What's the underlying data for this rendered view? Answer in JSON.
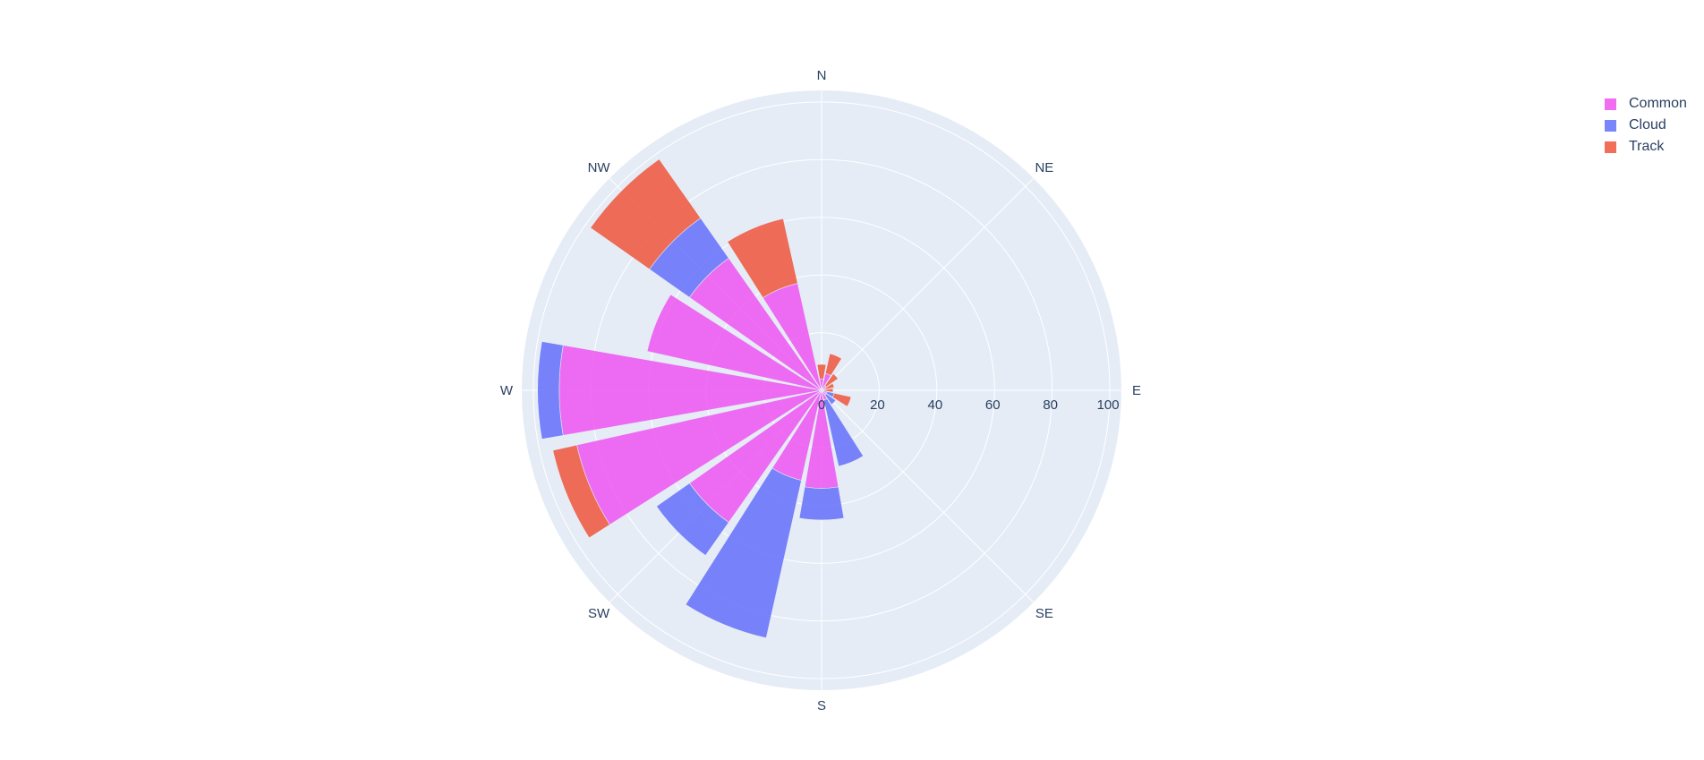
{
  "chart_data": {
    "type": "barpolar",
    "angular_ticks": [
      "N",
      "NE",
      "E",
      "SE",
      "S",
      "SW",
      "W",
      "NW"
    ],
    "radial_ticks": [
      0,
      20,
      40,
      60,
      80,
      100
    ],
    "radial_range": [
      0,
      104
    ],
    "directions": [
      "N",
      "NNE",
      "NE",
      "ENE",
      "E",
      "ESE",
      "SE",
      "SSE",
      "S",
      "SSW",
      "SW",
      "WSW",
      "W",
      "WNW",
      "NW",
      "NNW"
    ],
    "series": [
      {
        "name": "Common",
        "color": "#ef55f1",
        "values": [
          4,
          6,
          2,
          1.5,
          1,
          2,
          2,
          3.5,
          34,
          32,
          56,
          87,
          91,
          62,
          56,
          38
        ]
      },
      {
        "name": "Cloud",
        "color": "#636efa",
        "values": [
          0,
          0,
          0,
          0,
          0,
          2.5,
          4,
          23.5,
          11,
          56,
          14,
          0,
          7.5,
          0,
          17,
          0
        ]
      },
      {
        "name": "Track",
        "color": "#ef553b",
        "values": [
          5,
          7,
          5,
          3,
          3,
          6,
          0,
          0,
          0,
          0,
          0,
          8.5,
          0,
          0,
          25,
          23
        ]
      }
    ],
    "legend_position": "top-right",
    "grid": true,
    "background": "#e5ecf6"
  }
}
